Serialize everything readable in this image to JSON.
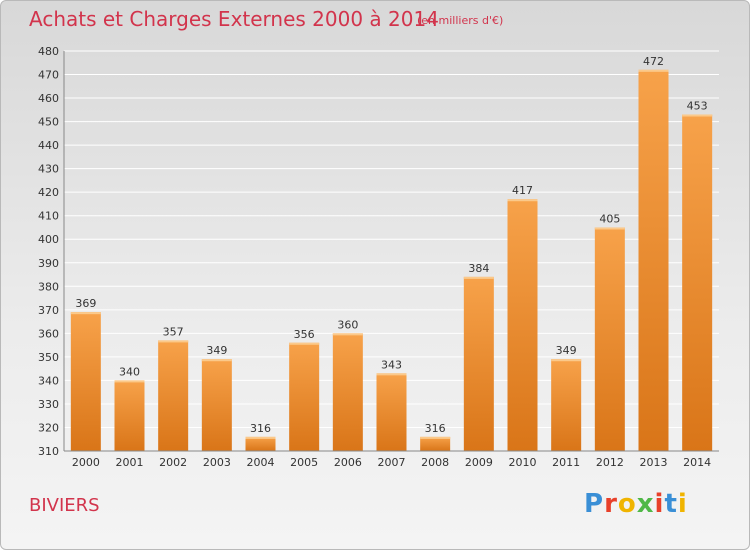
{
  "header": {
    "title": "Achats et Charges Externes 2000 à 2014",
    "subtitle": "(en milliers d'€)"
  },
  "footer": {
    "place": "BIVIERS",
    "logo_text": "Proxiti"
  },
  "colors": {
    "title": "#d2344c",
    "bar_top": "#f7a24a",
    "bar_bottom": "#d97518",
    "logo_letters": [
      "#3a8fd6",
      "#e8402a",
      "#f0b400",
      "#50b848",
      "#e8402a",
      "#3a8fd6",
      "#f0b400"
    ]
  },
  "chart_data": {
    "type": "bar",
    "title": "Achats et Charges Externes 2000 à 2014",
    "subtitle": "(en milliers d'€)",
    "categories": [
      "2000",
      "2001",
      "2002",
      "2003",
      "2004",
      "2005",
      "2006",
      "2007",
      "2008",
      "2009",
      "2010",
      "2011",
      "2012",
      "2013",
      "2014"
    ],
    "values": [
      369,
      340,
      357,
      349,
      316,
      356,
      360,
      343,
      316,
      384,
      417,
      349,
      405,
      472,
      453
    ],
    "ylim": [
      310,
      480
    ],
    "yticks": [
      310,
      320,
      330,
      340,
      350,
      360,
      370,
      380,
      390,
      400,
      410,
      420,
      430,
      440,
      450,
      460,
      470,
      480
    ],
    "grid": true,
    "data_labels": true
  }
}
